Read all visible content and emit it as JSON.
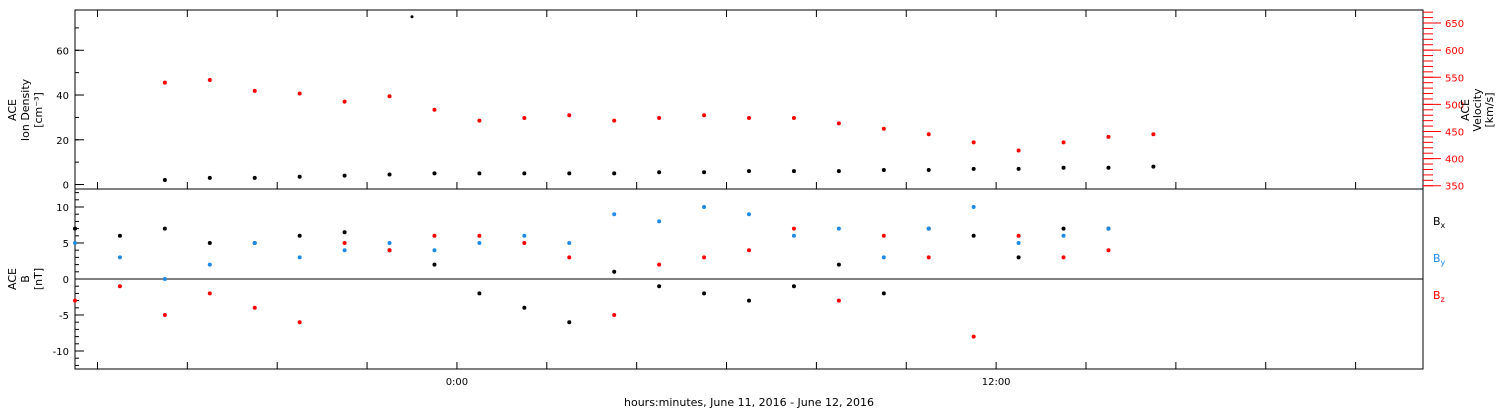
{
  "chart_data": [
    {
      "type": "scatter",
      "panel": "top",
      "left_axis_label": [
        "ACE",
        "Ion Density",
        "[cm⁻³]"
      ],
      "right_axis_label": [
        "ACE",
        "Velocity",
        "[km/s]"
      ],
      "left_ticks": [
        0,
        20,
        40,
        60
      ],
      "left_ylim": [
        -2,
        78
      ],
      "right_ticks": [
        350,
        400,
        450,
        500,
        550,
        600,
        650
      ],
      "right_ylim": [
        344,
        674
      ],
      "colors": {
        "density": "#000000",
        "velocity": "#ff0000"
      },
      "series": [
        {
          "axis": "left",
          "x": [
            -6.5,
            -5.5,
            -4.5,
            -3.5,
            -2.5,
            -1.5,
            -0.5,
            0.5,
            1.5,
            2.5,
            3.5,
            4.5,
            5.5,
            6.5,
            7.5,
            8.5,
            9.5,
            10.5,
            11.5,
            12.5,
            13.5,
            14.5,
            15.5
          ],
          "values": [
            2,
            3,
            3,
            3.5,
            4,
            4.5,
            5,
            5,
            5,
            5,
            5,
            5.5,
            5.5,
            6,
            6,
            6,
            6.5,
            6.5,
            7,
            7,
            7.5,
            7.5,
            8
          ]
        },
        {
          "axis": "right",
          "x": [
            -6.5,
            -5.5,
            -4.5,
            -3.5,
            -2.5,
            -1.5,
            -0.5,
            0.5,
            1.5,
            2.5,
            3.5,
            4.5,
            5.5,
            6.5,
            7.5,
            8.5,
            9.5,
            10.5,
            11.5,
            12.5,
            13.5,
            14.5,
            15.5
          ],
          "values": [
            540,
            545,
            525,
            520,
            505,
            515,
            490,
            470,
            475,
            480,
            470,
            475,
            480,
            475,
            475,
            465,
            455,
            445,
            430,
            415,
            430,
            440,
            445
          ]
        }
      ],
      "annotations": [
        {
          "x": -1.0,
          "y": 75,
          "note": "isolated density point"
        }
      ]
    },
    {
      "type": "scatter",
      "panel": "bottom",
      "left_axis_label": [
        "ACE",
        "B",
        "[nT]"
      ],
      "ticks": [
        -10,
        -5,
        0,
        5,
        10
      ],
      "ylim": [
        -12.5,
        12.5
      ],
      "zero_line": true,
      "series": [
        {
          "name": "Bx",
          "color": "#000000",
          "x": [
            -8.5,
            -7.5,
            -6.5,
            -5.5,
            -4.5,
            -3.5,
            -2.5,
            -1.5,
            -0.5,
            0.5,
            1.5,
            2.5,
            3.5,
            4.5,
            5.5,
            6.5,
            7.5,
            8.5,
            9.5,
            10.5,
            11.5,
            12.5,
            13.5,
            14.5
          ],
          "values": [
            7,
            6,
            7,
            5,
            5,
            6,
            6.5,
            4,
            2,
            -2,
            -4,
            -6,
            1,
            -1,
            -2,
            -3,
            -1,
            2,
            -2,
            7,
            6,
            3,
            7,
            7
          ]
        },
        {
          "name": "By",
          "color": "#1f8ae6",
          "x": [
            -8.5,
            -7.5,
            -6.5,
            -5.5,
            -4.5,
            -3.5,
            -2.5,
            -1.5,
            -0.5,
            0.5,
            1.5,
            2.5,
            3.5,
            4.5,
            5.5,
            6.5,
            7.5,
            8.5,
            9.5,
            10.5,
            11.5,
            12.5,
            13.5,
            14.5
          ],
          "values": [
            5,
            3,
            0,
            2,
            5,
            3,
            4,
            5,
            4,
            5,
            6,
            5,
            9,
            8,
            10,
            9,
            6,
            7,
            3,
            7,
            10,
            5,
            6,
            7
          ]
        },
        {
          "name": "Bz",
          "color": "#ff0000",
          "x": [
            -8.5,
            -7.5,
            -6.5,
            -5.5,
            -4.5,
            -3.5,
            -2.5,
            -1.5,
            -0.5,
            0.5,
            1.5,
            2.5,
            3.5,
            4.5,
            5.5,
            6.5,
            7.5,
            8.5,
            9.5,
            10.5,
            11.5,
            12.5,
            13.5,
            14.5
          ],
          "values": [
            -3,
            -1,
            -5,
            -2,
            -4,
            -6,
            5,
            4,
            6,
            6,
            5,
            3,
            -5,
            2,
            3,
            4,
            7,
            -3,
            6,
            3,
            -8,
            6,
            3,
            4
          ]
        }
      ]
    }
  ],
  "x_axis": {
    "label": "hours:minutes, June 11, 2016 - June 12, 2016",
    "range": [
      -8.5,
      21.5
    ],
    "labeled_ticks": [
      {
        "x": 0,
        "label": "0:00"
      },
      {
        "x": 12,
        "label": "12:00"
      }
    ],
    "minor_ticks": [
      -8,
      -6,
      -4,
      -2,
      0,
      2,
      4,
      6,
      8,
      10,
      12,
      14,
      16,
      18,
      20
    ]
  },
  "legend": {
    "position": "right",
    "items": [
      {
        "base": "B",
        "sub": "x",
        "color": "#000000"
      },
      {
        "base": "B",
        "sub": "y",
        "color": "#1f8ae6"
      },
      {
        "base": "B",
        "sub": "z",
        "color": "#ff0000"
      }
    ]
  }
}
